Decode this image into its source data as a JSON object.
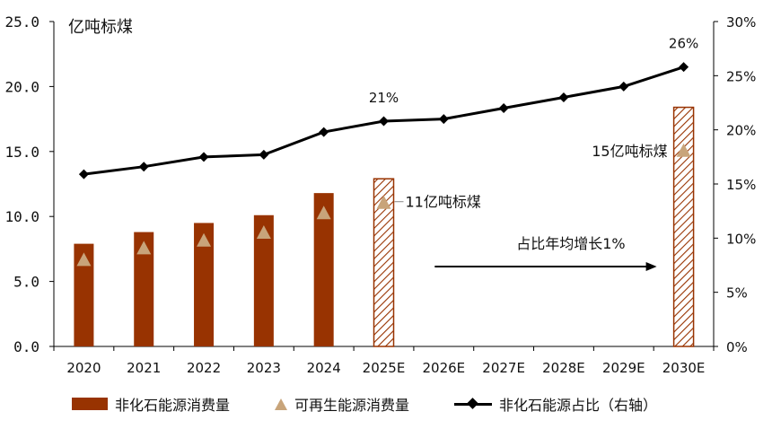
{
  "chart_data": {
    "type": "bar",
    "categories": [
      "2020",
      "2021",
      "2022",
      "2023",
      "2024",
      "2025E",
      "2026E",
      "2027E",
      "2028E",
      "2029E",
      "2030E"
    ],
    "left_axis": {
      "unit_label": "亿吨标煤",
      "ylim": [
        0,
        25
      ],
      "ticks": [
        "0.0",
        "5.0",
        "10.0",
        "15.0",
        "20.0",
        "25.0"
      ]
    },
    "right_axis": {
      "ylim": [
        0,
        30
      ],
      "ticks": [
        "0%",
        "5%",
        "10%",
        "15%",
        "20%",
        "25%",
        "30%"
      ]
    },
    "series": [
      {
        "name": "非化石能源消费量",
        "type": "bar",
        "color": "#983301",
        "values": [
          7.9,
          8.8,
          9.5,
          10.1,
          11.8,
          12.9,
          null,
          null,
          null,
          null,
          18.4
        ],
        "estimated": [
          false,
          false,
          false,
          false,
          false,
          true,
          false,
          false,
          false,
          false,
          true
        ]
      },
      {
        "name": "可再生能源消费量",
        "type": "scatter",
        "marker": "triangle",
        "color": "#c8a47a",
        "values": [
          6.6,
          7.5,
          8.1,
          8.7,
          10.2,
          11.0,
          null,
          null,
          null,
          null,
          15.0
        ]
      },
      {
        "name": "非化石能源占比（右轴）",
        "type": "line",
        "axis": "right",
        "color": "#000000",
        "values": [
          15.9,
          16.6,
          17.5,
          17.7,
          19.8,
          20.8,
          21.0,
          22.0,
          23.0,
          24.0,
          25.8
        ]
      }
    ],
    "annotations": [
      {
        "text": "21%",
        "category": "2025E",
        "series": "非化石能源占比（右轴）"
      },
      {
        "text": "26%",
        "category": "2030E",
        "series": "非化石能源占比（右轴）"
      },
      {
        "text": "11亿吨标煤",
        "category": "2025E",
        "series": "可再生能源消费量"
      },
      {
        "text": "15亿吨标煤",
        "category": "2030E",
        "series": "可再生能源消费量"
      },
      {
        "text": "占比年均增长1%",
        "arrow_from": "2026E",
        "arrow_to": "2030E"
      }
    ],
    "legend_position": "bottom",
    "grid": false
  }
}
